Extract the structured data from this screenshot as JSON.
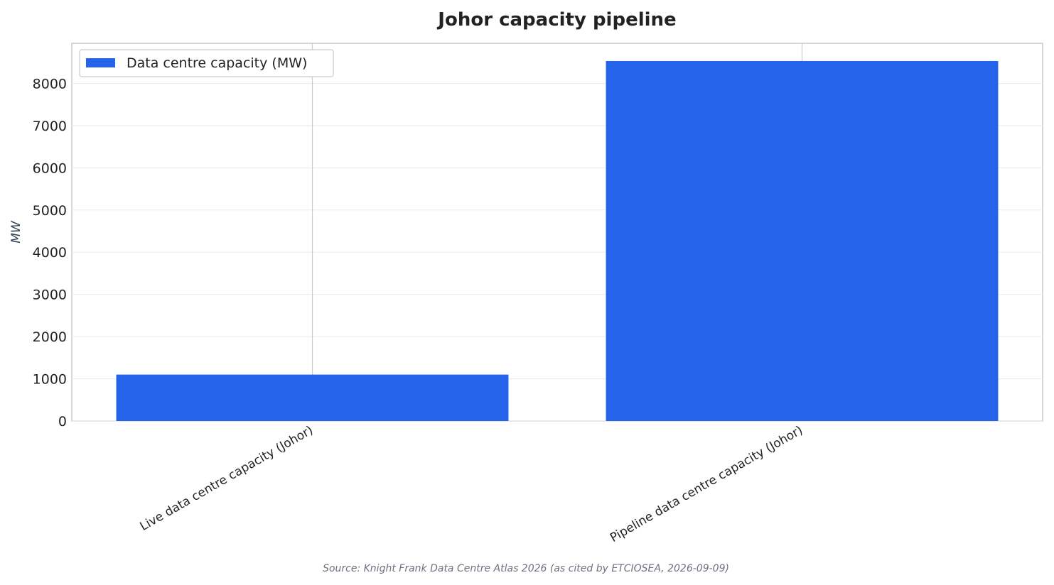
{
  "chart_data": {
    "type": "bar",
    "title": "Johor capacity pipeline",
    "xlabel": "",
    "ylabel": "MW",
    "categories": [
      "Live data centre capacity (Johor)",
      "Pipeline data centre capacity (Johor)"
    ],
    "series": [
      {
        "name": "Data centre capacity (MW)",
        "values": [
          1100,
          8530
        ],
        "color": "#2563eb"
      }
    ],
    "ylim": [
      0,
      8950
    ],
    "yticks": [
      0,
      1000,
      2000,
      3000,
      4000,
      5000,
      6000,
      7000,
      8000
    ],
    "grid": true,
    "legend_position": "top-left",
    "source": "Source: Knight Frank Data Centre Atlas 2026 (as cited by ETCIOSEA, 2026-09-09)"
  }
}
